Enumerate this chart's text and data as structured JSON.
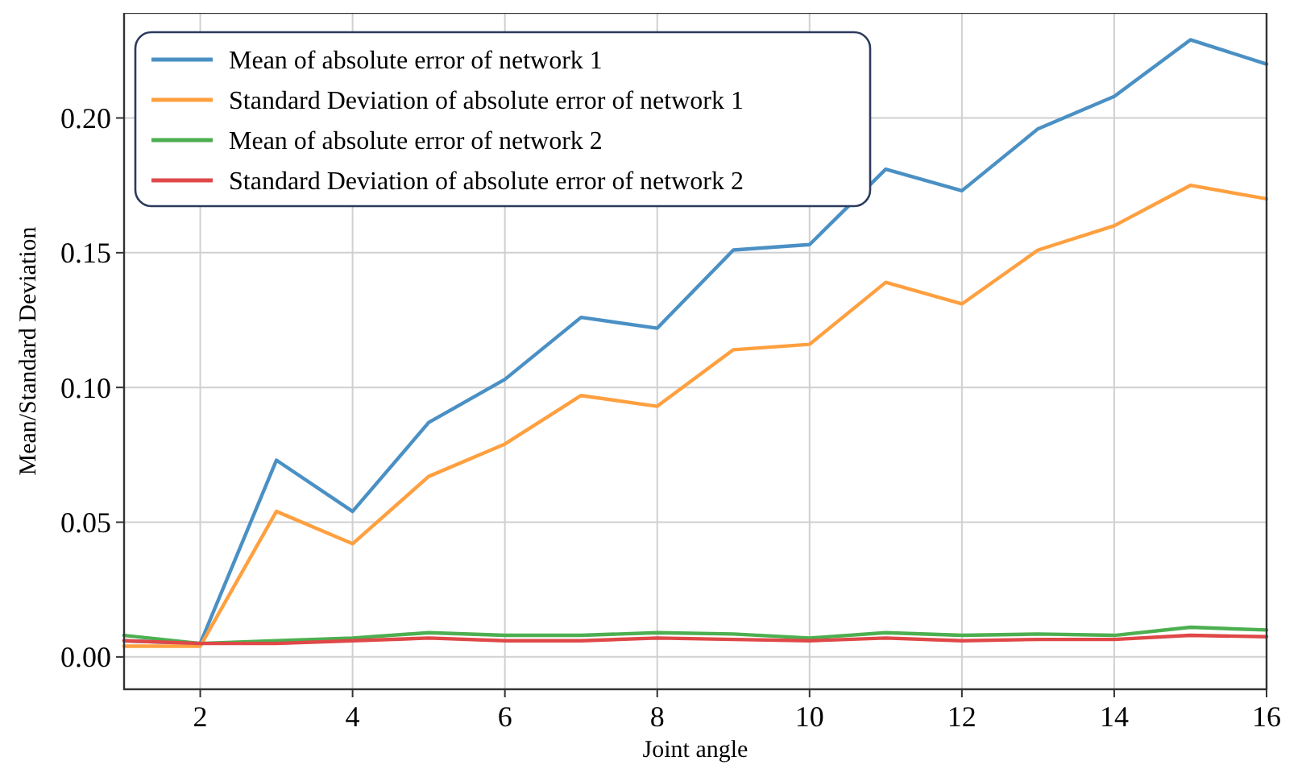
{
  "chart_data": {
    "type": "line",
    "xlabel": "Joint angle",
    "ylabel": "Mean/Standard Deviation",
    "x": [
      1,
      2,
      3,
      4,
      5,
      6,
      7,
      8,
      9,
      10,
      11,
      12,
      13,
      14,
      15,
      16
    ],
    "series": [
      {
        "name": "Mean of absolute error of network 1",
        "color": "#4a90c4",
        "values": [
          0.006,
          0.005,
          0.073,
          0.054,
          0.087,
          0.103,
          0.126,
          0.122,
          0.151,
          0.153,
          0.181,
          0.173,
          0.196,
          0.208,
          0.229,
          0.22
        ]
      },
      {
        "name": "Standard Deviation of absolute error of network 1",
        "color": "#ffa040",
        "values": [
          0.004,
          0.004,
          0.054,
          0.042,
          0.067,
          0.079,
          0.097,
          0.093,
          0.114,
          0.116,
          0.139,
          0.131,
          0.151,
          0.16,
          0.175,
          0.17
        ]
      },
      {
        "name": "Mean of absolute error of network 2",
        "color": "#4caf50",
        "values": [
          0.008,
          0.005,
          0.006,
          0.007,
          0.009,
          0.008,
          0.008,
          0.009,
          0.0085,
          0.007,
          0.009,
          0.008,
          0.0085,
          0.008,
          0.011,
          0.01
        ]
      },
      {
        "name": "Standard Deviation of absolute error of network 2",
        "color": "#e04848",
        "values": [
          0.006,
          0.005,
          0.005,
          0.006,
          0.007,
          0.006,
          0.006,
          0.007,
          0.0065,
          0.006,
          0.007,
          0.006,
          0.0065,
          0.0065,
          0.008,
          0.0075
        ]
      }
    ],
    "xlim": [
      1,
      16
    ],
    "xticks": [
      2,
      4,
      6,
      8,
      10,
      12,
      14,
      16
    ],
    "ylim": [
      -0.012,
      0.239
    ],
    "yticks": [
      {
        "value": 0,
        "label": "0.00"
      },
      {
        "value": 0.05,
        "label": "0.05"
      },
      {
        "value": 0.1,
        "label": "0.10"
      },
      {
        "value": 0.15,
        "label": "0.15"
      },
      {
        "value": 0.2,
        "label": "0.20"
      }
    ],
    "grid": true,
    "legend": "top left",
    "marker": "none",
    "line_style": "solid"
  }
}
